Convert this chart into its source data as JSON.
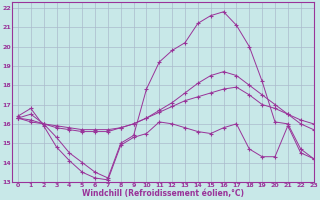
{
  "background_color": "#c8e8e8",
  "grid_color": "#aabbcc",
  "line_color": "#993399",
  "marker": "+",
  "xlim": [
    -0.5,
    23
  ],
  "ylim": [
    13,
    22.3
  ],
  "xlabel": "Windchill (Refroidissement éolien,°C)",
  "xticks": [
    0,
    1,
    2,
    3,
    4,
    5,
    6,
    7,
    8,
    9,
    10,
    11,
    12,
    13,
    14,
    15,
    16,
    17,
    18,
    19,
    20,
    21,
    22,
    23
  ],
  "yticks": [
    13,
    14,
    15,
    16,
    17,
    18,
    19,
    20,
    21,
    22
  ],
  "series": [
    {
      "x": [
        0,
        1,
        2,
        3,
        4,
        5,
        6,
        7,
        8,
        9,
        10,
        11,
        12,
        13,
        14,
        15,
        16,
        17,
        18,
        19,
        20,
        21,
        22,
        23
      ],
      "y": [
        16.4,
        16.8,
        15.9,
        14.8,
        14.1,
        13.5,
        13.2,
        13.1,
        14.9,
        15.3,
        15.5,
        16.1,
        16.0,
        15.8,
        15.6,
        15.5,
        15.8,
        16.0,
        14.7,
        14.3,
        14.3,
        15.9,
        14.5,
        14.2
      ]
    },
    {
      "x": [
        0,
        1,
        2,
        3,
        4,
        5,
        6,
        7,
        8,
        9,
        10,
        11,
        12,
        13,
        14,
        15,
        16,
        17,
        18,
        19,
        20,
        21,
        22,
        23
      ],
      "y": [
        16.3,
        16.2,
        16.0,
        15.9,
        15.8,
        15.7,
        15.7,
        15.7,
        15.8,
        16.0,
        16.3,
        16.6,
        16.9,
        17.2,
        17.4,
        17.6,
        17.8,
        17.9,
        17.5,
        17.0,
        16.8,
        16.5,
        16.2,
        16.0
      ]
    },
    {
      "x": [
        0,
        1,
        2,
        3,
        4,
        5,
        6,
        7,
        8,
        9,
        10,
        11,
        12,
        13,
        14,
        15,
        16,
        17,
        18,
        19,
        20,
        21,
        22,
        23
      ],
      "y": [
        16.3,
        16.1,
        16.0,
        15.8,
        15.7,
        15.6,
        15.6,
        15.6,
        15.8,
        16.0,
        16.3,
        16.7,
        17.1,
        17.6,
        18.1,
        18.5,
        18.7,
        18.5,
        18.0,
        17.5,
        17.0,
        16.5,
        16.0,
        15.7
      ]
    },
    {
      "x": [
        0,
        1,
        2,
        3,
        4,
        5,
        6,
        7,
        8,
        9,
        10,
        11,
        12,
        13,
        14,
        15,
        16,
        17,
        18,
        19,
        20,
        21,
        22,
        23
      ],
      "y": [
        16.3,
        16.5,
        16.0,
        15.3,
        14.5,
        14.0,
        13.5,
        13.2,
        15.0,
        15.4,
        17.8,
        19.2,
        19.8,
        20.2,
        21.2,
        21.6,
        21.8,
        21.1,
        20.0,
        18.2,
        16.1,
        16.0,
        14.7,
        14.2
      ]
    }
  ]
}
